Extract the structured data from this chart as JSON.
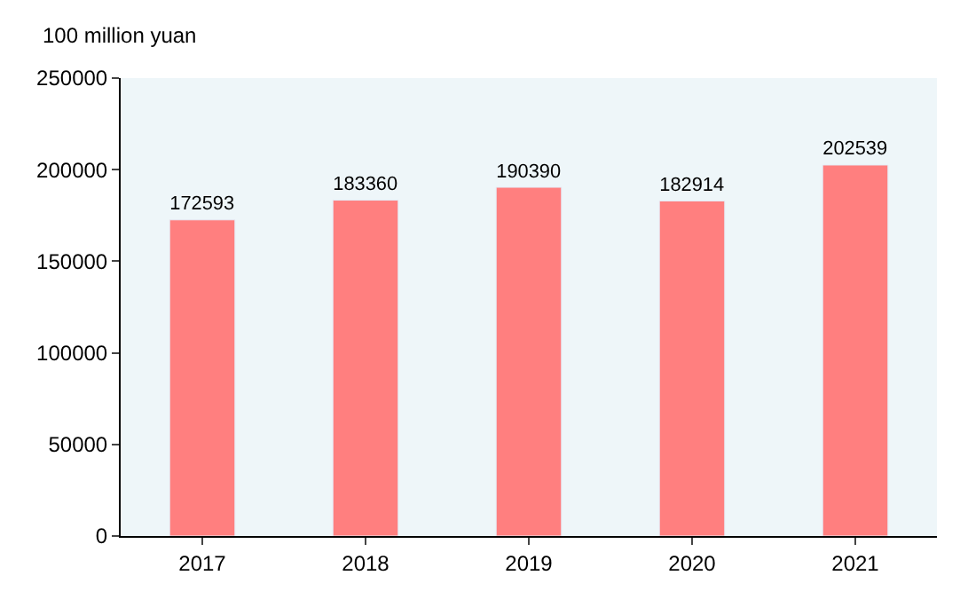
{
  "chart_data": {
    "type": "bar",
    "ylabel": "100 million yuan",
    "categories": [
      "2017",
      "2018",
      "2019",
      "2020",
      "2021"
    ],
    "values": [
      172593,
      183360,
      190390,
      182914,
      202539
    ],
    "color": "#ff7f7f",
    "data_labels": true,
    "grid": false,
    "legend": false,
    "ylim": [
      0,
      250000
    ],
    "yticks": [
      0,
      50000,
      100000,
      150000,
      200000,
      250000
    ]
  }
}
